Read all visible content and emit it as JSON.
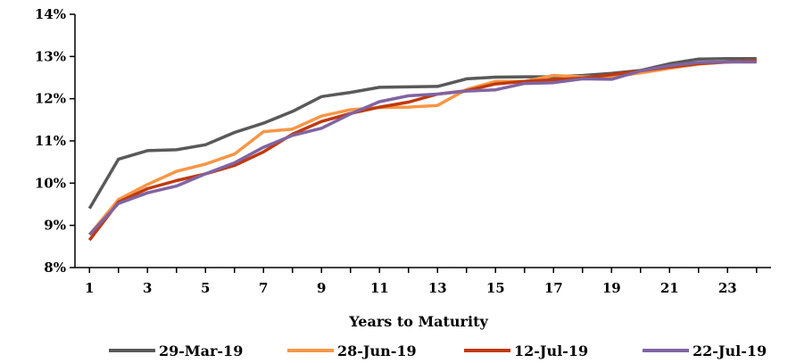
{
  "colors": {
    "series": [
      "#595959",
      "#f79646",
      "#c0390e",
      "#8064a2"
    ],
    "axis": "#000000",
    "background": "#ffffff"
  },
  "chart_data": {
    "type": "line",
    "title": "",
    "xlabel": "Years to Maturity",
    "ylabel": "",
    "x": [
      1,
      2,
      3,
      4,
      5,
      6,
      7,
      8,
      9,
      10,
      11,
      12,
      13,
      14,
      15,
      16,
      17,
      18,
      19,
      20,
      21,
      22,
      23,
      24
    ],
    "x_tick_labels": [
      "1",
      "3",
      "5",
      "7",
      "9",
      "11",
      "13",
      "15",
      "17",
      "19",
      "21",
      "23"
    ],
    "y_tick_labels": [
      "8%",
      "9%",
      "10%",
      "11%",
      "12%",
      "13%",
      "14%"
    ],
    "ylim": [
      8,
      14
    ],
    "y_unit": "%",
    "grid": false,
    "legend_position": "bottom",
    "series": [
      {
        "name": "29-Mar-19",
        "values": [
          9.4,
          10.57,
          10.77,
          10.79,
          10.91,
          11.2,
          11.42,
          11.7,
          12.05,
          12.15,
          12.27,
          12.28,
          12.29,
          12.47,
          12.51,
          12.52,
          12.52,
          12.55,
          12.6,
          12.67,
          12.83,
          12.94,
          12.95,
          12.95
        ]
      },
      {
        "name": "28-Jun-19",
        "values": [
          8.78,
          9.61,
          9.97,
          10.28,
          10.45,
          10.69,
          11.22,
          11.28,
          11.59,
          11.74,
          11.79,
          11.8,
          11.84,
          12.22,
          12.41,
          12.41,
          12.55,
          12.52,
          12.52,
          12.61,
          12.72,
          12.82,
          12.87,
          12.9
        ]
      },
      {
        "name": "12-Jul-19",
        "values": [
          8.65,
          9.55,
          9.87,
          10.06,
          10.22,
          10.42,
          10.74,
          11.16,
          11.46,
          11.65,
          11.8,
          11.92,
          12.11,
          12.19,
          12.35,
          12.41,
          12.45,
          12.49,
          12.57,
          12.66,
          12.75,
          12.83,
          12.87,
          12.9
        ]
      },
      {
        "name": "22-Jul-19",
        "values": [
          8.78,
          9.52,
          9.77,
          9.93,
          10.22,
          10.48,
          10.85,
          11.13,
          11.3,
          11.64,
          11.93,
          12.07,
          12.11,
          12.18,
          12.21,
          12.36,
          12.38,
          12.47,
          12.46,
          12.66,
          12.78,
          12.86,
          12.87,
          12.87
        ]
      }
    ]
  }
}
